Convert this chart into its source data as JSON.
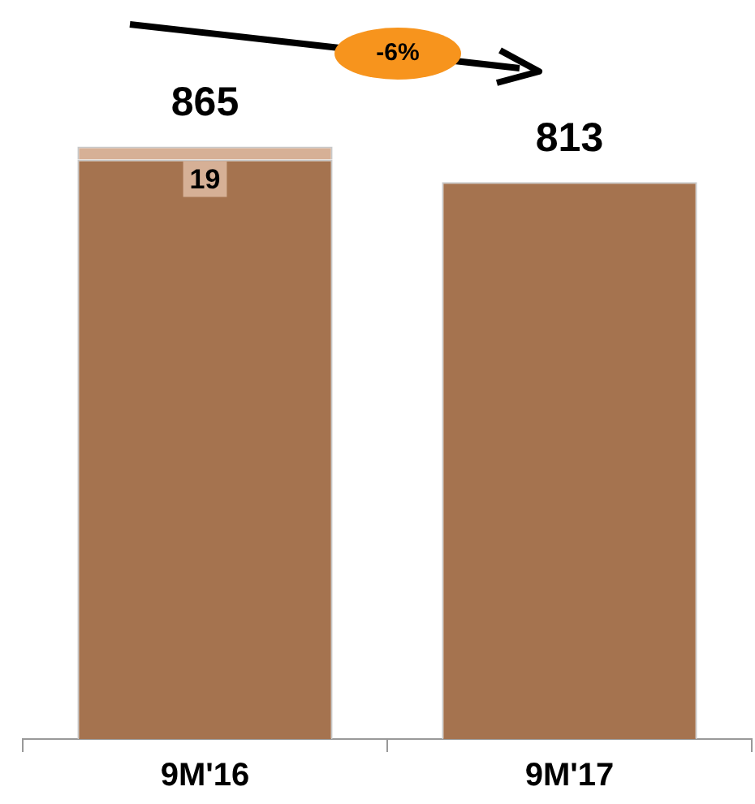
{
  "chart_data": {
    "type": "bar",
    "stacked": true,
    "categories": [
      "9M'16",
      "9M'17"
    ],
    "series": [
      {
        "color": "#a5734f",
        "values": [
          846,
          813
        ]
      },
      {
        "color": "#d6b096",
        "values": [
          19,
          null
        ],
        "value_labels": [
          "19",
          null
        ]
      }
    ],
    "totals": [
      "865",
      "813"
    ],
    "annotations": [
      "-6%"
    ],
    "legend": false,
    "grid": false
  }
}
